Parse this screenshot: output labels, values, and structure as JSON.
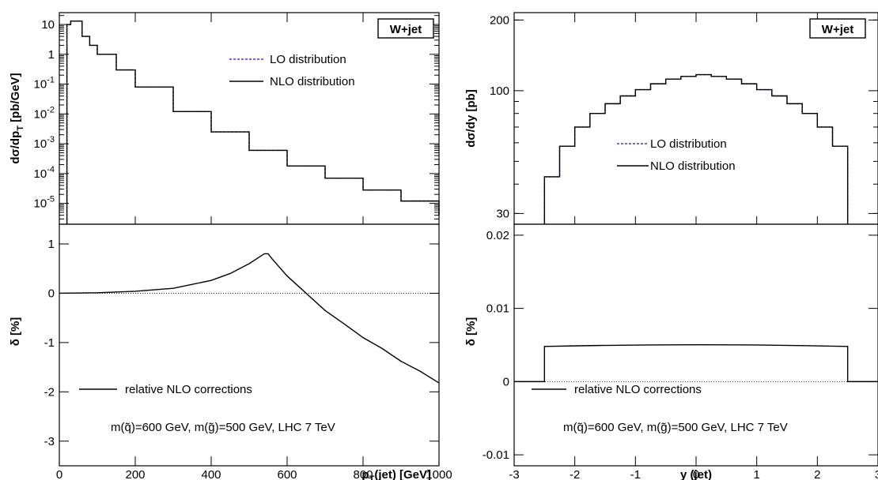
{
  "chart_data": [
    {
      "id": "pt",
      "type": "line",
      "box_label": "W+jet",
      "upper": {
        "ylabel_main": "dσ/dp",
        "ylabel_sub": "T",
        "ylabel_unit": " [pb/GeV]",
        "yscale": "log",
        "ylim": [
          2e-06,
          25
        ],
        "yticks": [
          {
            "v": 10,
            "base": "10",
            "exp": ""
          },
          {
            "v": 1,
            "base": "1",
            "exp": ""
          },
          {
            "v": 0.1,
            "base": "10",
            "exp": "-1"
          },
          {
            "v": 0.01,
            "base": "10",
            "exp": "-2"
          },
          {
            "v": 0.001,
            "base": "10",
            "exp": "-3"
          },
          {
            "v": 0.0001,
            "base": "10",
            "exp": "-4"
          },
          {
            "v": 1e-05,
            "base": "10",
            "exp": "-5"
          }
        ],
        "series": [
          {
            "name": "LO distribution",
            "color": "#3a3ad0",
            "dash": true
          },
          {
            "name": "NLO distribution",
            "color": "#000000",
            "dash": false
          }
        ],
        "x": [
          20,
          30,
          40,
          60,
          80,
          100,
          150,
          200,
          300,
          400,
          500,
          600,
          700,
          800,
          900,
          1000
        ],
        "y": [
          10,
          13,
          13,
          4.0,
          2.0,
          1.0,
          0.3,
          0.08,
          0.012,
          0.0025,
          0.0006,
          0.00018,
          7e-05,
          2.8e-05,
          1.2e-05,
          4e-06
        ]
      },
      "lower": {
        "ylabel_main": "δ [%]",
        "ylim": [
          -3.5,
          1.4
        ],
        "yticks": [
          "1",
          "0",
          "-1",
          "-2",
          "-3"
        ],
        "series_name": "relative NLO corrections",
        "annotation": "m(q̃)=600 GeV, m(g̃)=500 GeV, LHC 7 TeV",
        "x": [
          0,
          100,
          200,
          300,
          400,
          450,
          500,
          520,
          540,
          550,
          560,
          600,
          650,
          700,
          750,
          800,
          850,
          900,
          950,
          1000
        ],
        "y": [
          0,
          0.01,
          0.04,
          0.1,
          0.26,
          0.4,
          0.6,
          0.7,
          0.8,
          0.8,
          0.7,
          0.35,
          0.0,
          -0.35,
          -0.62,
          -0.9,
          -1.12,
          -1.38,
          -1.58,
          -1.82
        ]
      },
      "xlabel_main": "p",
      "xlabel_sub": "T",
      "xlabel_unit": "(jet) [GeV]",
      "xlim": [
        0,
        1000
      ],
      "xticks": [
        "0",
        "200",
        "400",
        "600",
        "800",
        "1000"
      ]
    },
    {
      "id": "y",
      "type": "line",
      "box_label": "W+jet",
      "upper": {
        "ylabel_main": "dσ/dy [pb]",
        "yscale": "log",
        "ylim": [
          27,
          215
        ],
        "yticks": [
          {
            "v": 200,
            "base": "200",
            "exp": ""
          },
          {
            "v": 100,
            "base": "100",
            "exp": ""
          },
          {
            "v": 30,
            "base": "30",
            "exp": ""
          }
        ],
        "series": [
          {
            "name": "LO distribution",
            "color": "#3a3ad0",
            "dash": true
          },
          {
            "name": "NLO distribution",
            "color": "#000000",
            "dash": false
          }
        ],
        "x": [
          -2.5,
          -2.25,
          -2.0,
          -1.75,
          -1.5,
          -1.25,
          -1.0,
          -0.75,
          -0.5,
          -0.25,
          0.0,
          0.25,
          0.5,
          0.75,
          1.0,
          1.25,
          1.5,
          1.75,
          2.0,
          2.25,
          2.5
        ],
        "y": [
          43,
          58,
          70,
          80,
          88,
          95,
          101,
          107,
          112,
          115,
          117,
          115,
          112,
          107,
          101,
          95,
          88,
          80,
          70,
          58,
          43
        ]
      },
      "lower": {
        "ylabel_main": "δ [%]",
        "ylim": [
          -0.0115,
          0.0215
        ],
        "yticks": [
          "0.02",
          "0.01",
          "0",
          "-0.01"
        ],
        "series_name": "relative NLO corrections",
        "annotation": "m(q̃)=600 GeV, m(g̃)=500 GeV, LHC 7 TeV",
        "x": [
          -3.0,
          -2.5,
          -2.0,
          -1.0,
          0.0,
          1.0,
          2.0,
          2.5,
          3.0
        ],
        "y": [
          0,
          0.0048,
          0.0049,
          0.005,
          0.00505,
          0.005,
          0.0049,
          0.0048,
          0
        ]
      },
      "xlabel_main": "y (jet)",
      "xlim": [
        -3,
        3
      ],
      "xticks": [
        "-3",
        "-2",
        "-1",
        "0",
        "1",
        "2",
        "3"
      ]
    }
  ]
}
